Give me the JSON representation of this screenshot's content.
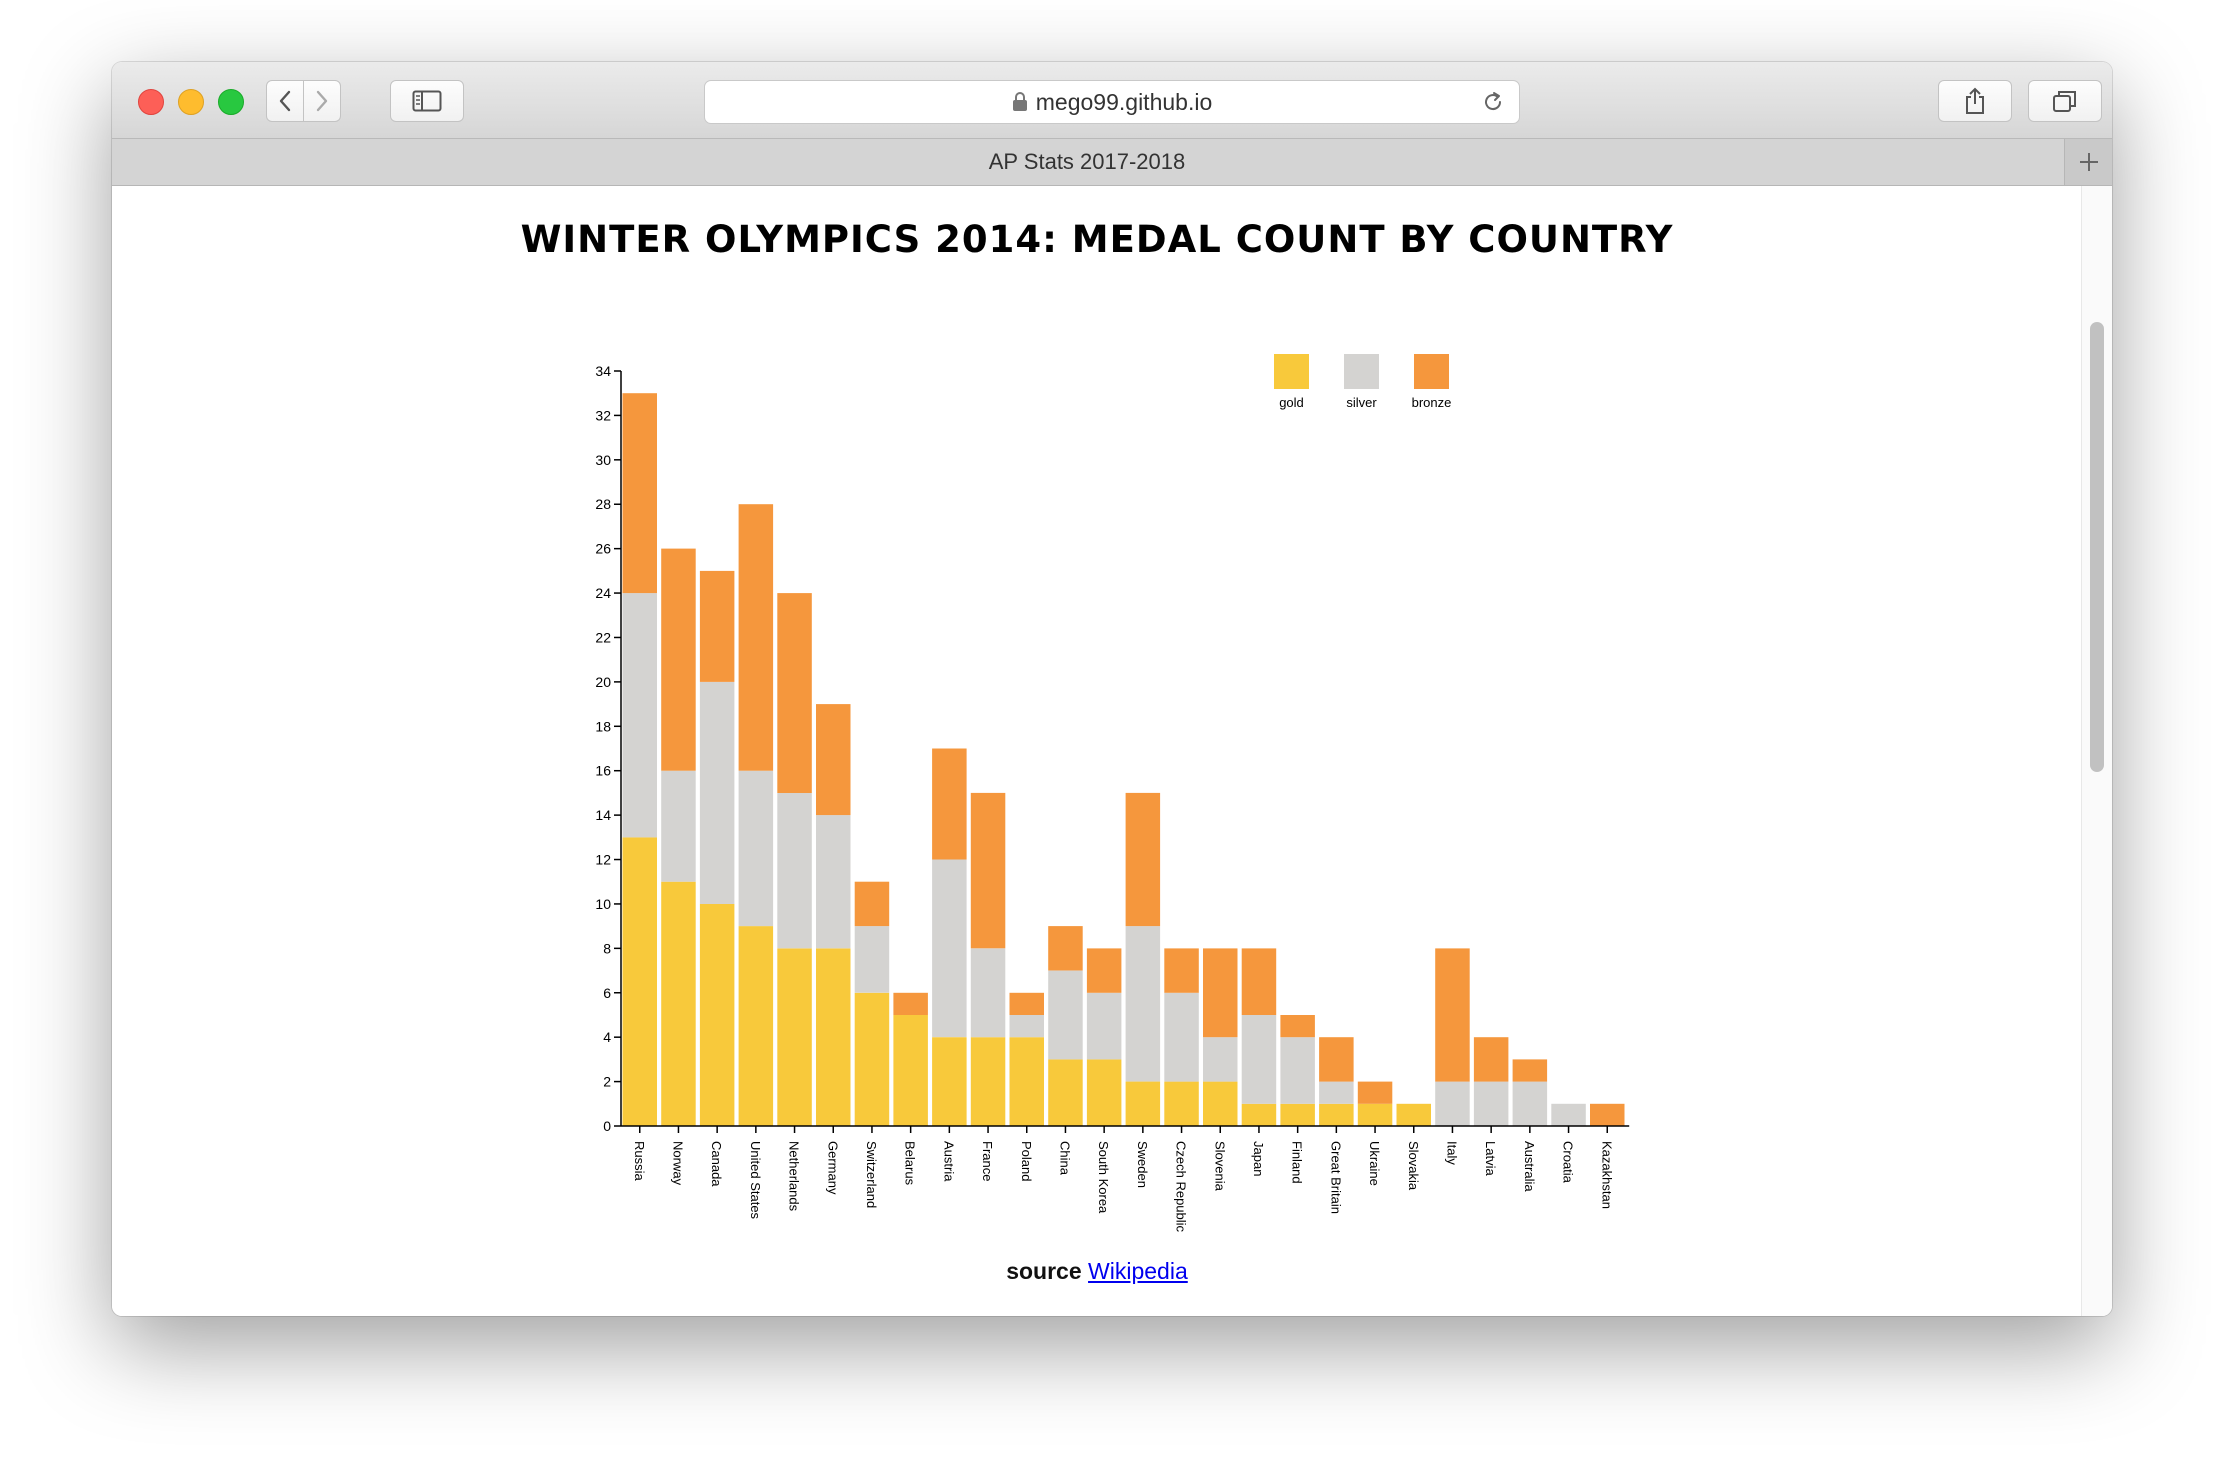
{
  "browser": {
    "url": "mego99.github.io",
    "tab_title": "AP Stats 2017-2018"
  },
  "page": {
    "title": "WINTER OLYMPICS 2014: MEDAL COUNT BY COUNTRY",
    "source_label": "source",
    "source_link": "Wikipedia"
  },
  "colors": {
    "gold": "#f8c93b",
    "silver": "#d4d3d1",
    "bronze": "#f5973d"
  },
  "chart_data": {
    "type": "bar",
    "stacked": true,
    "categories": [
      "Russia",
      "Norway",
      "Canada",
      "United States",
      "Netherlands",
      "Germany",
      "Switzerland",
      "Belarus",
      "Austria",
      "France",
      "Poland",
      "China",
      "South Korea",
      "Sweden",
      "Czech Republic",
      "Slovenia",
      "Japan",
      "Finland",
      "Great Britain",
      "Ukraine",
      "Slovakia",
      "Italy",
      "Latvia",
      "Australia",
      "Croatia",
      "Kazakhstan"
    ],
    "series": [
      {
        "name": "gold",
        "values": [
          13,
          11,
          10,
          9,
          8,
          8,
          6,
          5,
          4,
          4,
          4,
          3,
          3,
          2,
          2,
          2,
          1,
          1,
          1,
          1,
          1,
          0,
          0,
          0,
          0,
          0
        ]
      },
      {
        "name": "silver",
        "values": [
          11,
          5,
          10,
          7,
          7,
          6,
          3,
          0,
          8,
          4,
          1,
          4,
          3,
          7,
          4,
          2,
          4,
          3,
          1,
          0,
          0,
          2,
          2,
          2,
          1,
          0
        ]
      },
      {
        "name": "bronze",
        "values": [
          9,
          10,
          5,
          12,
          9,
          5,
          2,
          1,
          5,
          7,
          1,
          2,
          2,
          6,
          2,
          4,
          3,
          1,
          2,
          1,
          0,
          6,
          2,
          1,
          0,
          1
        ]
      }
    ],
    "ylim": [
      0,
      34
    ],
    "yticks": [
      0,
      2,
      4,
      6,
      8,
      10,
      12,
      14,
      16,
      18,
      20,
      22,
      24,
      26,
      28,
      30,
      32,
      34
    ],
    "legend": "top-right",
    "grid": false
  }
}
